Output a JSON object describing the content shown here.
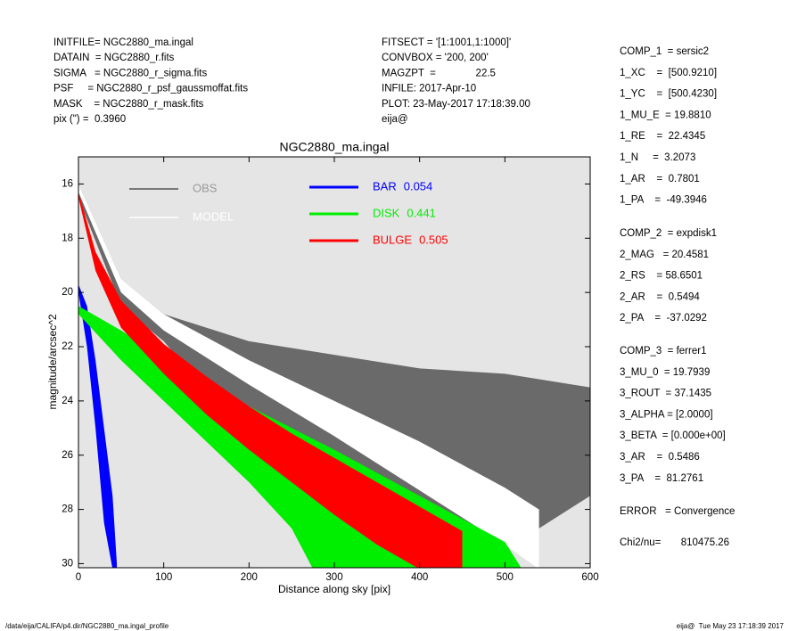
{
  "header_left": [
    "INITFILE= NGC2880_ma.ingal",
    "DATAIN  = NGC2880_r.fits",
    "SIGMA   = NGC2880_r_sigma.fits",
    "PSF     = NGC2880_r_psf_gaussmoffat.fits",
    "MASK    = NGC2880_r_mask.fits",
    "pix (\") =  0.3960"
  ],
  "header_middle": [
    "FITSECT = '[1:1001,1:1000]'",
    "CONVBOX = '200, 200'",
    "MAGZPT  =              22.5",
    "INFILE: 2017-Apr-10",
    "PLOT: 23-May-2017 17:18:39.00",
    "eija@"
  ],
  "parameters": [
    [
      "COMP_1  = sersic2",
      "1_XC    =  [500.9210]",
      "1_YC    =  [500.4230]",
      "1_MU_E  = 19.8810",
      "1_RE    =  22.4345",
      "1_N     =  3.2073",
      "1_AR    =  0.7801",
      "1_PA    =  -49.3946"
    ],
    [
      "COMP_2  = expdisk1",
      "2_MAG   = 20.4581",
      "2_RS    = 58.6501",
      "2_AR    =  0.5494",
      "2_PA    =  -37.0292"
    ],
    [
      "COMP_3  = ferrer1",
      "3_MU_0  = 19.7939",
      "3_ROUT  = 37.1435",
      "3_ALPHA = [2.0000]",
      "3_BETA  = [0.000e+00]",
      "3_AR    =  0.5486",
      "3_PA    =  81.2761"
    ],
    [
      "ERROR   = Convergence"
    ],
    [
      "Chi2/nu=       810475.26"
    ]
  ],
  "footer_left": "/data/eija/CALIFA/p4.dir/NGC2880_ma.ingal_profile",
  "footer_right": "eija@  Tue May 23 17:18:39 2017",
  "chart_data": {
    "type": "band",
    "title": "NGC2880_ma.ingal",
    "xlabel": "Distance along sky [pix]",
    "ylabel": "magnitude/arcsec^2",
    "xlim": [
      0,
      600
    ],
    "ylim": [
      30.15,
      15
    ],
    "xticks": [
      0,
      100,
      200,
      300,
      400,
      500,
      600
    ],
    "yticks": [
      16,
      18,
      20,
      22,
      24,
      26,
      28,
      30
    ],
    "series": [
      {
        "name": "OBS",
        "color": "#555555",
        "x": [
          0,
          50,
          100,
          200,
          300,
          400,
          500,
          600
        ],
        "lower": [
          16,
          19.5,
          20.8,
          21.8,
          22.3,
          22.8,
          23,
          23.5
        ],
        "upper": [
          16.5,
          20.5,
          21.8,
          25.5,
          27,
          28.5,
          29.5,
          27.5
        ]
      },
      {
        "name": "MODEL",
        "color": "#ffffff",
        "x": [
          0,
          50,
          100,
          200,
          300,
          400,
          500,
          540
        ],
        "lower": [
          16,
          19.5,
          20.8,
          22.5,
          24,
          25.5,
          27.2,
          28
        ],
        "upper": [
          16.3,
          20,
          21.4,
          23.4,
          25.3,
          27.3,
          29.3,
          30.2
        ]
      },
      {
        "name": "BAR",
        "fraction": 0.054,
        "color": "#0000ff",
        "x": [
          0,
          10,
          20,
          30,
          40,
          45
        ],
        "lower": [
          19.7,
          20.5,
          22.5,
          25,
          27.5,
          30
        ],
        "upper": [
          20,
          22,
          25,
          28.5,
          30.2,
          30.2
        ]
      },
      {
        "name": "DISK",
        "fraction": 0.441,
        "color": "#00ee00",
        "x": [
          0,
          50,
          100,
          150,
          200,
          250,
          275,
          300,
          400,
          500,
          520
        ],
        "lower": [
          20.5,
          21.4,
          22.4,
          23.3,
          24.2,
          25,
          25.4,
          25.8,
          27.5,
          29.2,
          30.2
        ],
        "upper": [
          20.8,
          22.5,
          24,
          25.5,
          27,
          28.7,
          30.2,
          30.2,
          30.2,
          30.2,
          30.2
        ]
      },
      {
        "name": "BULGE",
        "fraction": 0.505,
        "color": "#ff0000",
        "x": [
          0,
          20,
          50,
          100,
          150,
          200,
          250,
          300,
          350,
          400,
          450
        ],
        "lower": [
          16.3,
          18.5,
          20.3,
          21.9,
          23.1,
          24.2,
          25.2,
          26.1,
          27,
          27.9,
          28.8
        ],
        "upper": [
          16.5,
          19.2,
          21.3,
          23,
          24.5,
          25.8,
          27,
          28.2,
          29.3,
          30.2,
          30.2
        ]
      }
    ]
  }
}
